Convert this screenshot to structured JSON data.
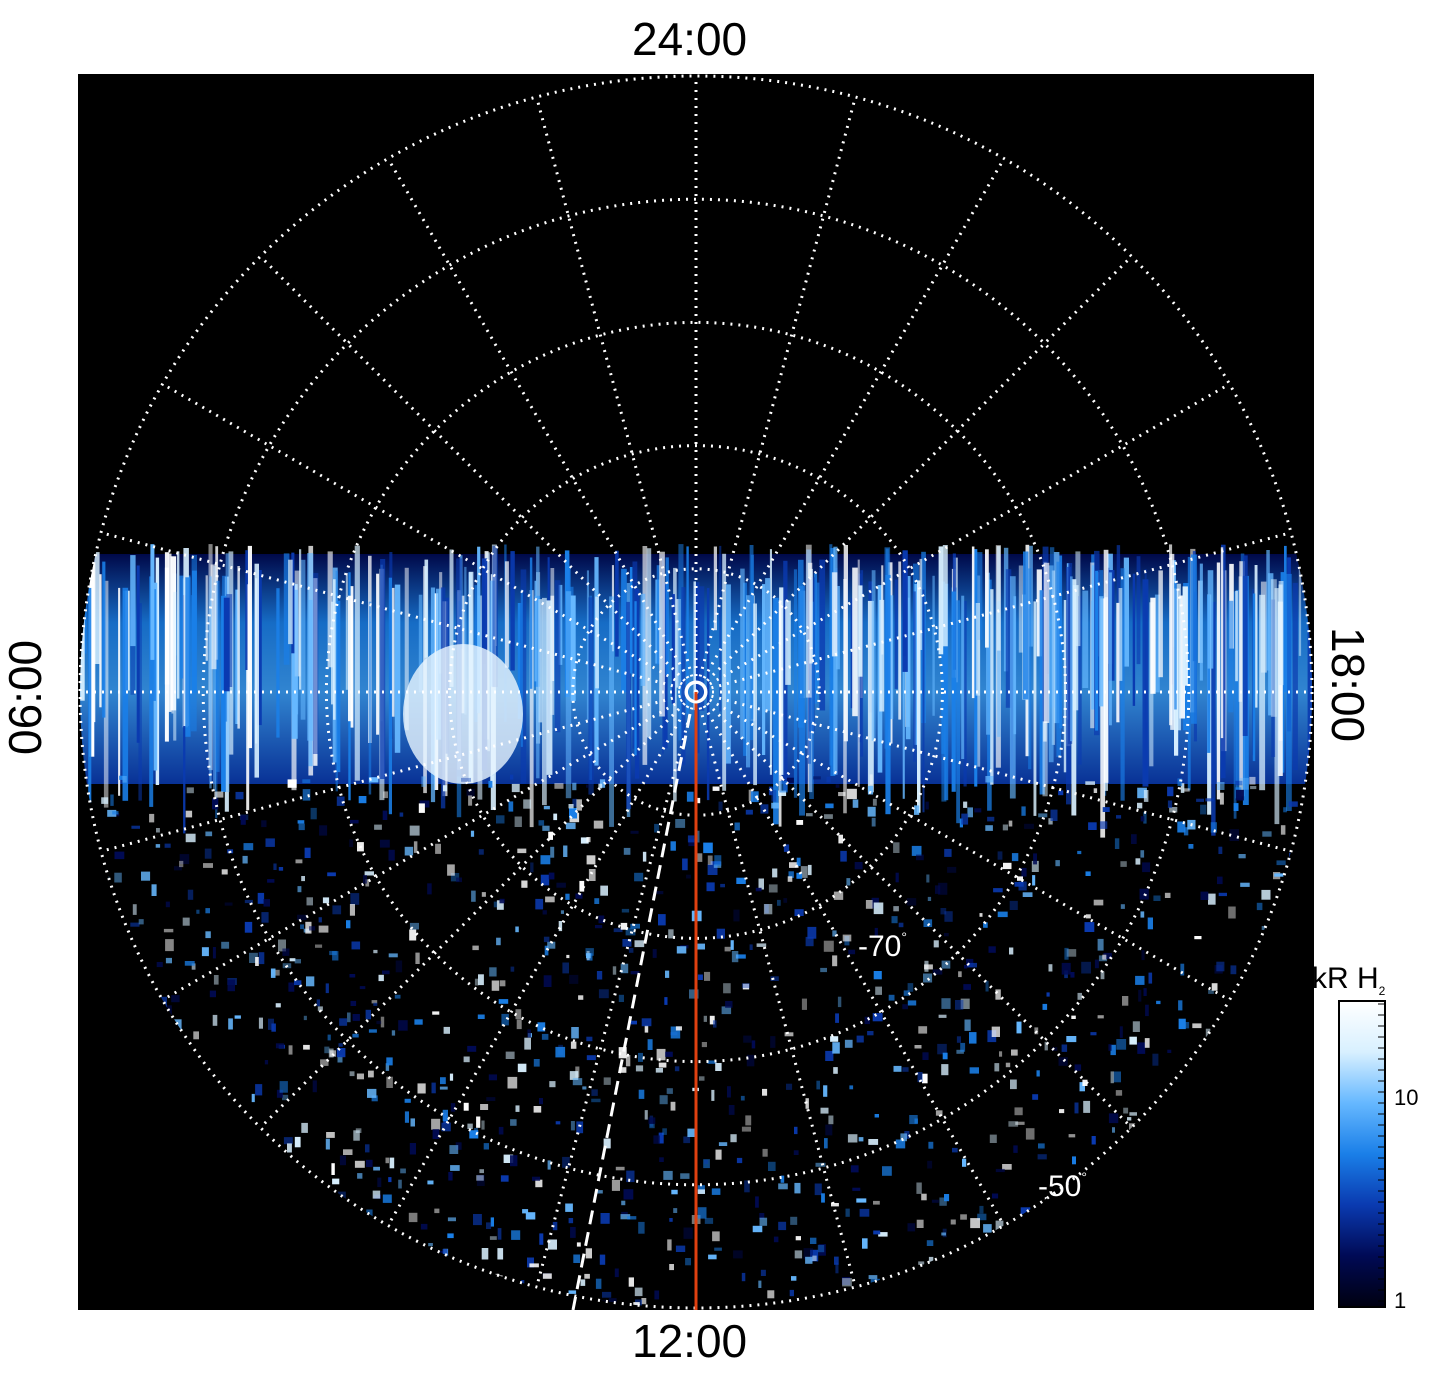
{
  "title": "",
  "local_time_labels": {
    "top": "24:00",
    "bottom": "12:00",
    "left": "06:00",
    "right": "18:00"
  },
  "latitude_labels": [
    {
      "text": "-70",
      "unit": "°"
    },
    {
      "text": "-50",
      "unit": "°"
    }
  ],
  "colorbar": {
    "unit_main": "kR H",
    "unit_sub": "2",
    "scale": "log",
    "ticks": [
      "1",
      "10"
    ],
    "range": [
      1,
      25
    ],
    "colormap": [
      "#000010",
      "#000a55",
      "#0a3ab0",
      "#1a7fe8",
      "#66b8ff",
      "#d8f0ff",
      "#ffffff"
    ]
  },
  "projection": {
    "type": "polar",
    "center": "pole",
    "circles_deg": [
      -80,
      -70,
      -60,
      -50,
      -40
    ],
    "meridians_hours": 24,
    "grid_style": "dotted",
    "grid_color": "#ffffff",
    "meridian_line_color": "#e04010",
    "background": "#000000"
  }
}
